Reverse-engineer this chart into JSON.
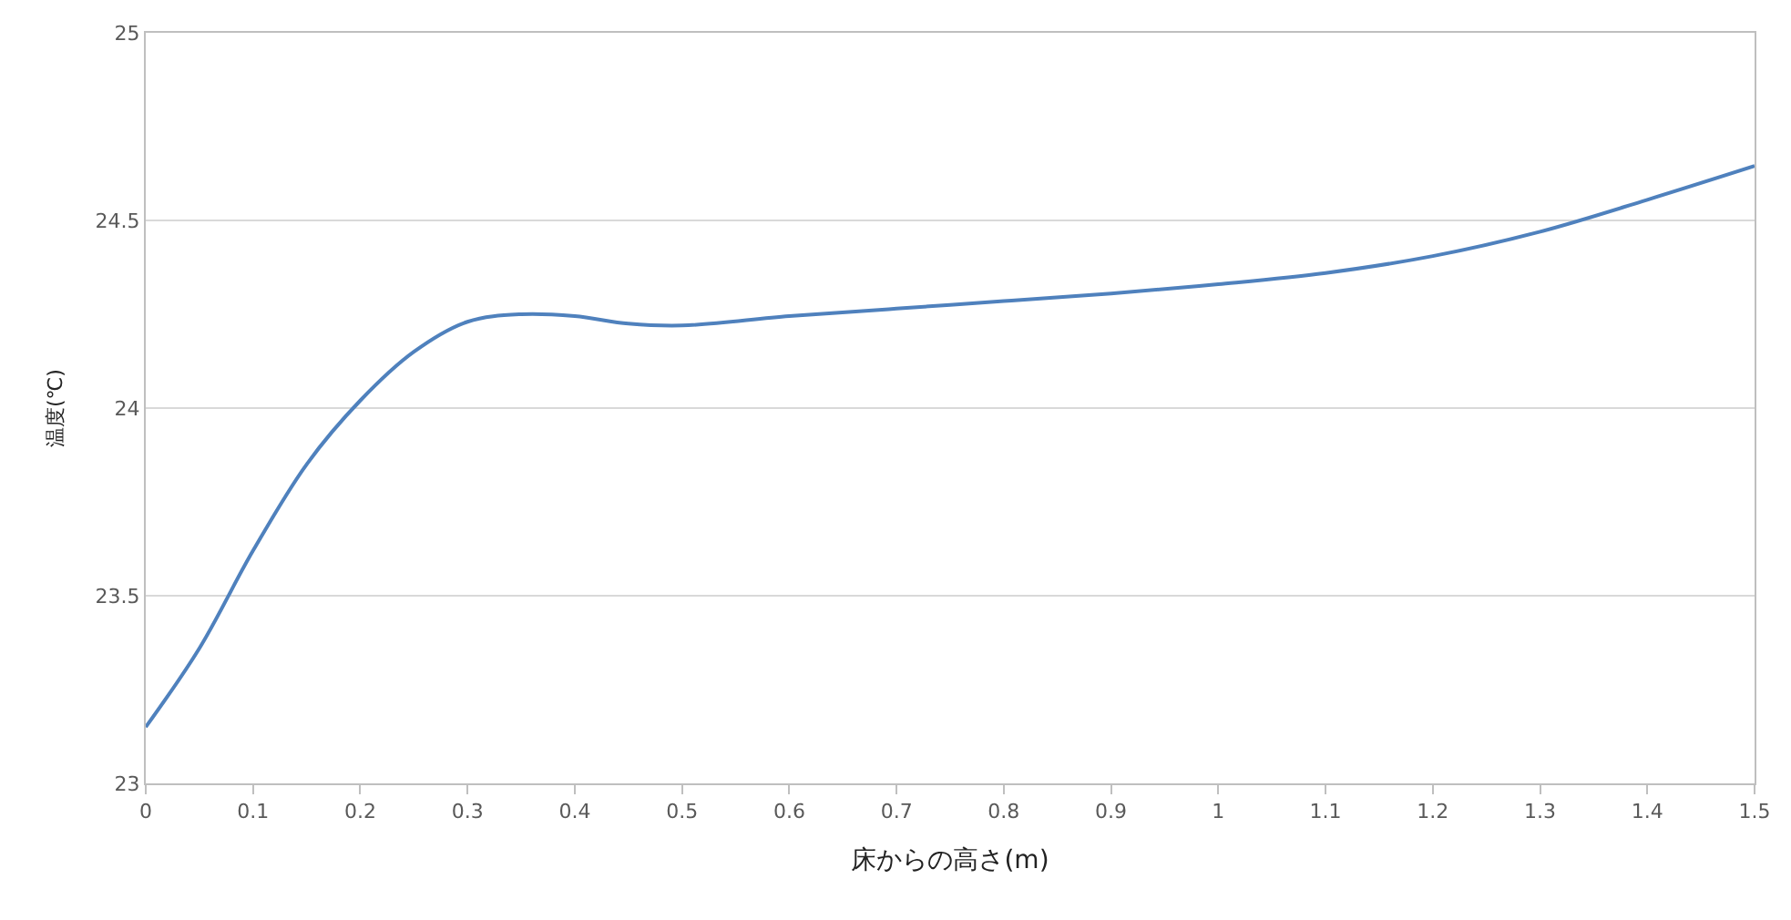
{
  "chart_data": {
    "type": "line",
    "xlabel": "床からの高さ(m)",
    "ylabel": "温度(℃)",
    "x": [
      0,
      0.05,
      0.1,
      0.15,
      0.2,
      0.25,
      0.3,
      0.35,
      0.4,
      0.45,
      0.5,
      0.6,
      0.7,
      0.8,
      0.9,
      1.0,
      1.1,
      1.2,
      1.3,
      1.4,
      1.5
    ],
    "series": [
      {
        "color": "#4f81bd",
        "values": [
          23.15,
          23.36,
          23.62,
          23.85,
          24.02,
          24.15,
          24.23,
          24.25,
          24.245,
          24.225,
          24.22,
          24.245,
          24.265,
          24.285,
          24.305,
          24.33,
          24.36,
          24.405,
          24.47,
          24.555,
          24.645
        ]
      }
    ],
    "xlim": [
      0,
      1.5
    ],
    "xticks": [
      0,
      0.1,
      0.2,
      0.3,
      0.4,
      0.5,
      0.6,
      0.7,
      0.8,
      0.9,
      1,
      1.1,
      1.2,
      1.3,
      1.4,
      1.5
    ],
    "ylim": [
      23,
      25
    ],
    "yticks": [
      23,
      23.5,
      24,
      24.5,
      25
    ],
    "grid": "y",
    "legend": false,
    "marker": "none",
    "line_style": "solid"
  }
}
